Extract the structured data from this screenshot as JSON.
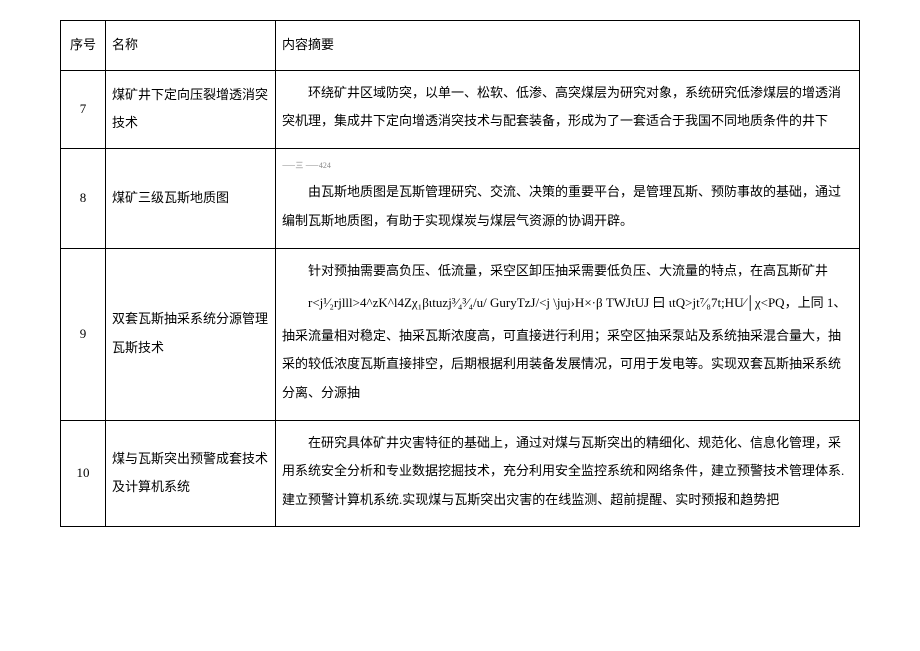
{
  "table": {
    "headers": {
      "num": "序号",
      "name": "名称",
      "content": "内容摘要"
    },
    "rows": [
      {
        "num": "7",
        "name": "煤矿井下定向压裂增透消突技术",
        "content_p1": "环绕矿井区域防突，以单一、松软、低渗、高突煤层为研究对象，系统研究低渗煤层的增透消突机理，集成井下定向增透消突技术与配套装备，形成为了一套适合于我国不同地质条件的井下"
      },
      {
        "num": "8",
        "name": "煤矿三级瓦斯地质图",
        "tiny": "⸺三 ⸺424",
        "content_p1": "由瓦斯地质图是瓦斯管理研究、交流、决策的重要平台，是管理瓦斯、预防事故的基础，通过编制瓦斯地质图，有助于实现煤炭与煤层气资源的协调开辟。"
      },
      {
        "num": "9",
        "name": "双套瓦斯抽采系统分源管理瓦斯技术",
        "content_p1": "针对预抽需要高负压、低流量，采空区卸压抽采需要低负压、大流量的特点，在高瓦斯矿井",
        "content_p2": "r<j¹⁄₂rjlll>4^zK^l4Zχ₁βιtuzj³⁄₄³⁄₄/u/ GuryTzJ/<j \\juj›H×·β      TWJtUJ 曰 ιtQ>jt⁷⁄₈7t;HU∕│χ<PQ，上同 1、",
        "content_p3": "抽采流量相对稳定、抽采瓦斯浓度高，可直接进行利用；采空区抽采泵站及系统抽采混合量大，抽采的较低浓度瓦斯直接排空，后期根据利用装备发展情况，可用于发电等。实现双套瓦斯抽采系统分离、分源抽"
      },
      {
        "num": "10",
        "name": "煤与瓦斯突出预警成套技术及计算机系统",
        "content_p1": "在研究具体矿井灾害特征的基础上，通过对煤与瓦斯突出的精细化、规范化、信息化管理，采用系统安全分析和专业数据挖掘技术，充分利用安全监控系统和网络条件，建立预警技术管理体系.建立预警计算机系统.实现煤与瓦斯突出灾害的在线监测、超前提醒、实时预报和趋势把"
      }
    ]
  }
}
